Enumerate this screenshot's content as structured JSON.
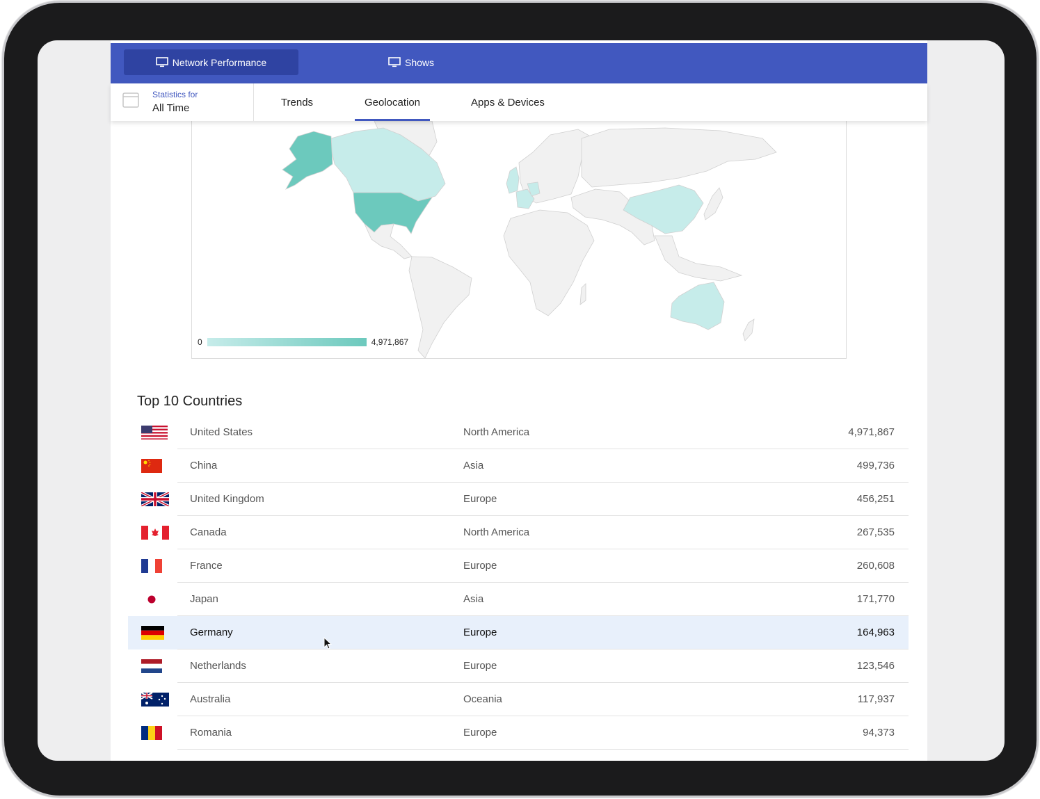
{
  "topbar": {
    "tabs": [
      {
        "label": "Network Performance",
        "icon": "monitor-icon",
        "active": true
      },
      {
        "label": "Shows",
        "icon": "monitor-icon",
        "active": false
      }
    ]
  },
  "subbar": {
    "stats_label": "Statistics for",
    "stats_value": "All Time",
    "tabs": [
      {
        "label": "Trends",
        "active": false
      },
      {
        "label": "Geolocation",
        "active": true
      },
      {
        "label": "Apps & Devices",
        "active": false
      }
    ]
  },
  "map": {
    "legend_min": "0",
    "legend_max": "4,971,867",
    "colors": {
      "low": "#c6ecea",
      "high": "#6cc9bd",
      "empty": "#f1f1f1",
      "border": "#d0d0d0"
    }
  },
  "countries": {
    "title": "Top 10 Countries",
    "rows": [
      {
        "flag": "us-flag",
        "country": "United States",
        "region": "North America",
        "value": "4,971,867"
      },
      {
        "flag": "china-flag",
        "country": "China",
        "region": "Asia",
        "value": "499,736"
      },
      {
        "flag": "uk-flag",
        "country": "United Kingdom",
        "region": "Europe",
        "value": "456,251"
      },
      {
        "flag": "canada-flag",
        "country": "Canada",
        "region": "North America",
        "value": "267,535"
      },
      {
        "flag": "france-flag",
        "country": "France",
        "region": "Europe",
        "value": "260,608"
      },
      {
        "flag": "japan-flag",
        "country": "Japan",
        "region": "Asia",
        "value": "171,770"
      },
      {
        "flag": "germany-flag",
        "country": "Germany",
        "region": "Europe",
        "value": "164,963",
        "highlighted": true
      },
      {
        "flag": "netherlands-flag",
        "country": "Netherlands",
        "region": "Europe",
        "value": "123,546"
      },
      {
        "flag": "australia-flag",
        "country": "Australia",
        "region": "Oceania",
        "value": "117,937"
      },
      {
        "flag": "romania-flag",
        "country": "Romania",
        "region": "Europe",
        "value": "94,373"
      }
    ]
  }
}
